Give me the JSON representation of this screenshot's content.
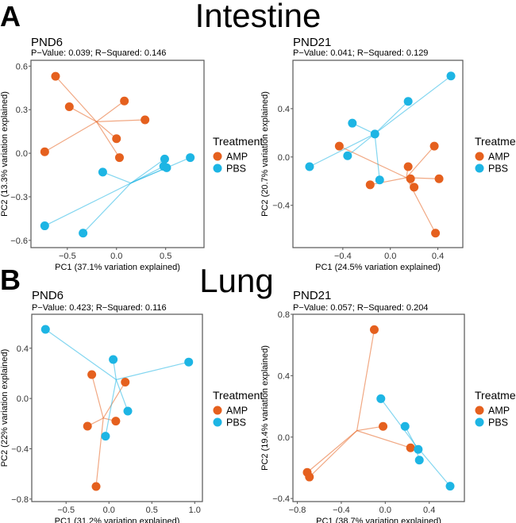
{
  "figure": {
    "panel_labels": [
      "A",
      "B"
    ],
    "section_titles": [
      "Intestine",
      "Lung"
    ]
  },
  "legend": {
    "title": "Treatment",
    "items": [
      {
        "label": "AMP",
        "color": "#E5601E"
      },
      {
        "label": "PBS",
        "color": "#1DB5E4"
      }
    ]
  },
  "chart_data": [
    {
      "type": "scatter",
      "section": "Intestine",
      "title": "PND6",
      "subtitle": "P−Value: 0.039; R−Squared: 0.146",
      "xlabel": "PC1 (37.1% variation explained)",
      "ylabel": "PC2 (13.3% variation explained)",
      "xlim": [
        -0.87,
        0.89
      ],
      "ylim": [
        -0.65,
        0.64
      ],
      "xticks": [
        -0.5,
        0.0,
        0.5
      ],
      "xtick_labels": [
        "−0.5",
        "0.0",
        "0.5"
      ],
      "yticks": [
        -0.6,
        -0.3,
        0.0,
        0.3,
        0.6
      ],
      "ytick_labels": [
        "−0.6",
        "−0.3",
        "0.0",
        "0.3",
        "0.6"
      ],
      "series": [
        {
          "name": "AMP",
          "x": [
            -0.62,
            -0.48,
            0.08,
            0.29,
            0.0,
            0.03,
            -0.73
          ],
          "y": [
            0.53,
            0.32,
            0.36,
            0.23,
            0.1,
            -0.03,
            0.01
          ]
        },
        {
          "name": "PBS",
          "x": [
            -0.14,
            0.49,
            0.48,
            0.51,
            0.75,
            -0.73,
            -0.34
          ],
          "y": [
            -0.13,
            -0.04,
            -0.09,
            -0.1,
            -0.03,
            -0.5,
            -0.55
          ]
        }
      ]
    },
    {
      "type": "scatter",
      "section": "Intestine",
      "title": "PND21",
      "subtitle": "P−Value: 0.041; R−Squared: 0.129",
      "xlabel": "PC1 (24.5% variation explained)",
      "ylabel": "PC2 (20.7% variation explained)",
      "xlim": [
        -0.82,
        0.61
      ],
      "ylim": [
        -0.75,
        0.8
      ],
      "xticks": [
        -0.4,
        0.0,
        0.4
      ],
      "xtick_labels": [
        "−0.4",
        "0.0",
        "0.4"
      ],
      "yticks": [
        -0.4,
        0.0,
        0.4
      ],
      "ytick_labels": [
        "−0.4",
        "0.0",
        "0.4"
      ],
      "series": [
        {
          "name": "AMP",
          "x": [
            -0.43,
            0.37,
            0.15,
            0.17,
            0.41,
            -0.17,
            0.2,
            0.38
          ],
          "y": [
            0.09,
            0.09,
            -0.08,
            -0.18,
            -0.18,
            -0.23,
            -0.25,
            -0.63
          ]
        },
        {
          "name": "PBS",
          "x": [
            0.51,
            0.15,
            -0.32,
            -0.13,
            -0.36,
            -0.68,
            -0.09
          ],
          "y": [
            0.67,
            0.46,
            0.28,
            0.19,
            0.01,
            -0.08,
            -0.19
          ]
        }
      ]
    },
    {
      "type": "scatter",
      "section": "Lung",
      "title": "PND6",
      "subtitle": "P−Value: 0.423; R−Squared: 0.116",
      "xlabel": "PC1 (31.2% variation explained)",
      "ylabel": "PC2 (22% variation explained)",
      "xlim": [
        -0.9,
        1.09
      ],
      "ylim": [
        -0.82,
        0.67
      ],
      "xticks": [
        -0.5,
        0.0,
        0.5,
        1.0
      ],
      "xtick_labels": [
        "−0.5",
        "0.0",
        "0.5",
        "1.0"
      ],
      "yticks": [
        -0.8,
        -0.4,
        0.0,
        0.4
      ],
      "ytick_labels": [
        "−0.8",
        "−0.4",
        "0.0",
        "0.4"
      ],
      "series": [
        {
          "name": "AMP",
          "x": [
            -0.2,
            0.19,
            0.08,
            -0.25,
            -0.15
          ],
          "y": [
            0.19,
            0.13,
            -0.18,
            -0.22,
            -0.7
          ]
        },
        {
          "name": "PBS",
          "x": [
            -0.74,
            0.05,
            0.93,
            0.22,
            -0.04
          ],
          "y": [
            0.55,
            0.31,
            0.29,
            -0.1,
            -0.3
          ]
        }
      ]
    },
    {
      "type": "scatter",
      "section": "Lung",
      "title": "PND21",
      "subtitle": "P−Value: 0.057; R−Squared: 0.204",
      "xlabel": "PC1 (38.7% variation explained)",
      "ylabel": "PC2 (19.4% variation explained)",
      "xlim": [
        -0.84,
        0.72
      ],
      "ylim": [
        -0.42,
        0.8
      ],
      "xticks": [
        -0.8,
        -0.4,
        0.0,
        0.4
      ],
      "xtick_labels": [
        "−0.8",
        "−0.4",
        "0.0",
        "0.4"
      ],
      "yticks": [
        -0.4,
        0.0,
        0.4,
        0.8
      ],
      "ytick_labels": [
        "−0.4",
        "0.0",
        "0.4",
        "0.8"
      ],
      "series": [
        {
          "name": "AMP",
          "x": [
            -0.1,
            -0.02,
            0.23,
            -0.71,
            -0.69
          ],
          "y": [
            0.7,
            0.07,
            -0.07,
            -0.23,
            -0.26
          ]
        },
        {
          "name": "PBS",
          "x": [
            -0.04,
            0.18,
            0.3,
            0.31,
            0.59
          ],
          "y": [
            0.25,
            0.07,
            -0.08,
            -0.15,
            -0.32
          ]
        }
      ]
    }
  ]
}
